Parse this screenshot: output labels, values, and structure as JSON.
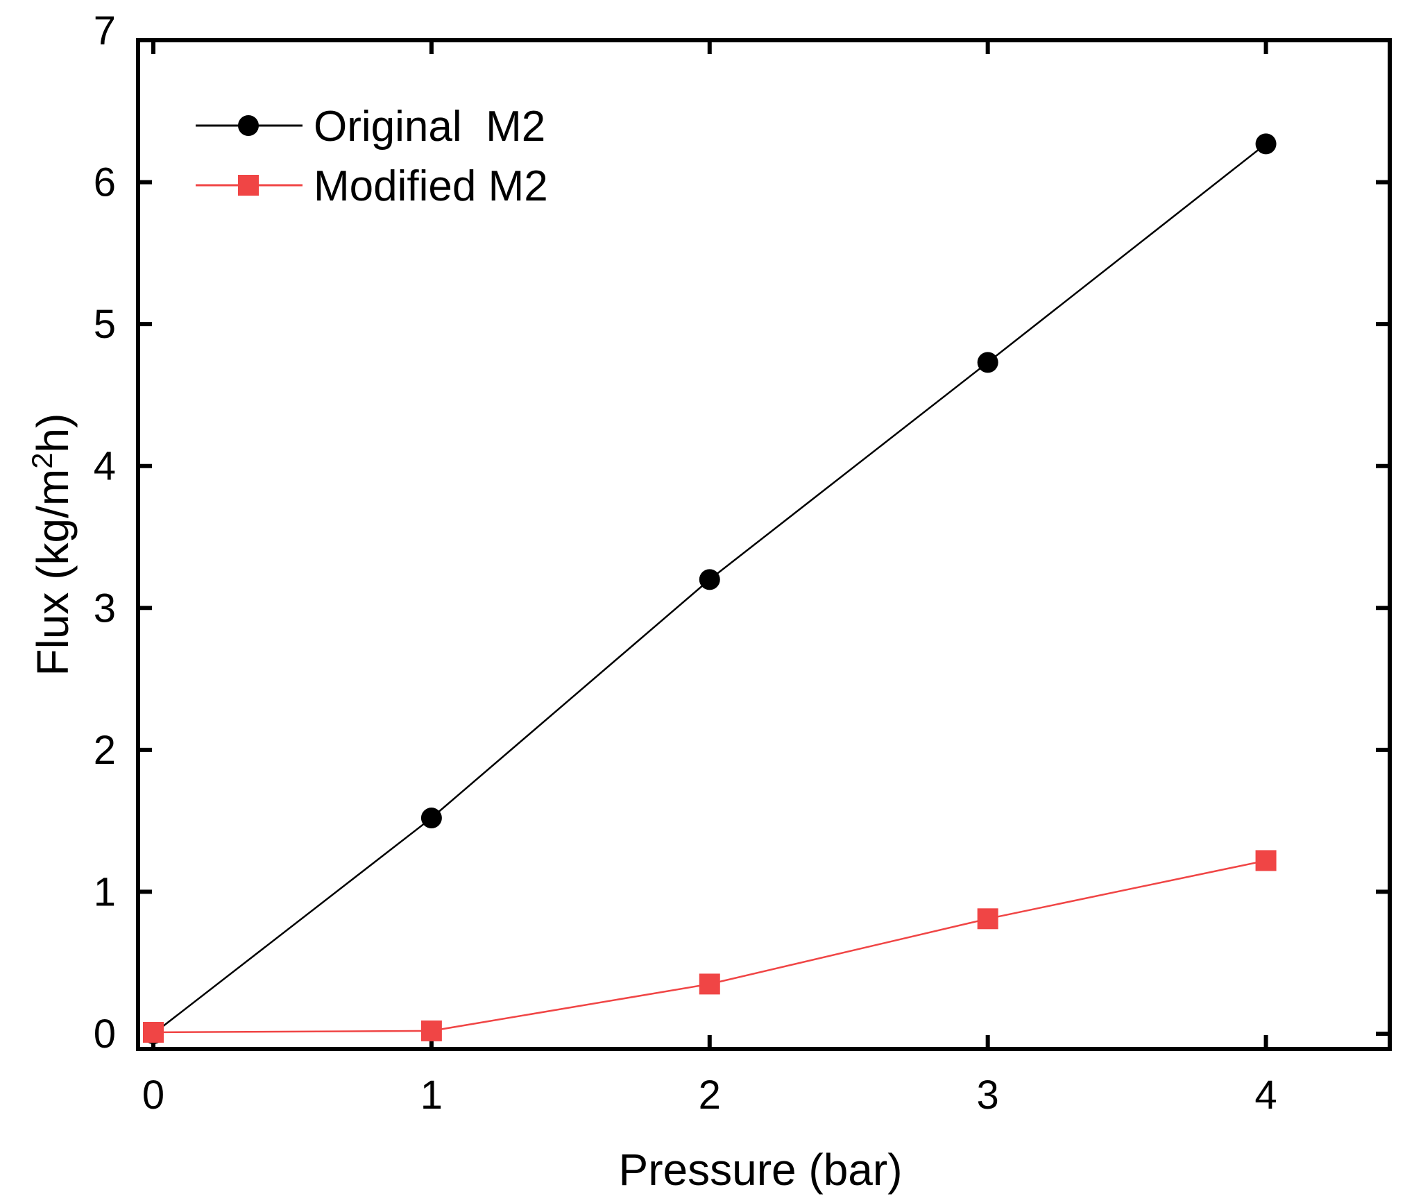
{
  "chart_data": {
    "type": "line",
    "title": "",
    "xlabel": "Pressure (bar)",
    "ylabel": "Flux (kg/m²h)",
    "ylabel_parts": {
      "prefix": "Flux (kg/m",
      "sup": "2",
      "suffix": "h)"
    },
    "xlim": [
      0,
      4.5
    ],
    "ylim": [
      0,
      7
    ],
    "xticks": [
      0,
      1,
      2,
      3,
      4
    ],
    "yticks": [
      0,
      1,
      2,
      3,
      4,
      5,
      6,
      7
    ],
    "grid": false,
    "legend_position": "top-left",
    "series": [
      {
        "name": "Original  M2",
        "color": "#000000",
        "marker": "circle",
        "x": [
          0,
          1,
          2,
          3,
          4
        ],
        "y": [
          0,
          1.52,
          3.2,
          4.73,
          6.27
        ]
      },
      {
        "name": "Modified M2",
        "color": "#f04545",
        "marker": "square",
        "x": [
          0,
          1,
          2,
          3,
          4
        ],
        "y": [
          0.01,
          0.02,
          0.35,
          0.81,
          1.22
        ]
      }
    ]
  }
}
